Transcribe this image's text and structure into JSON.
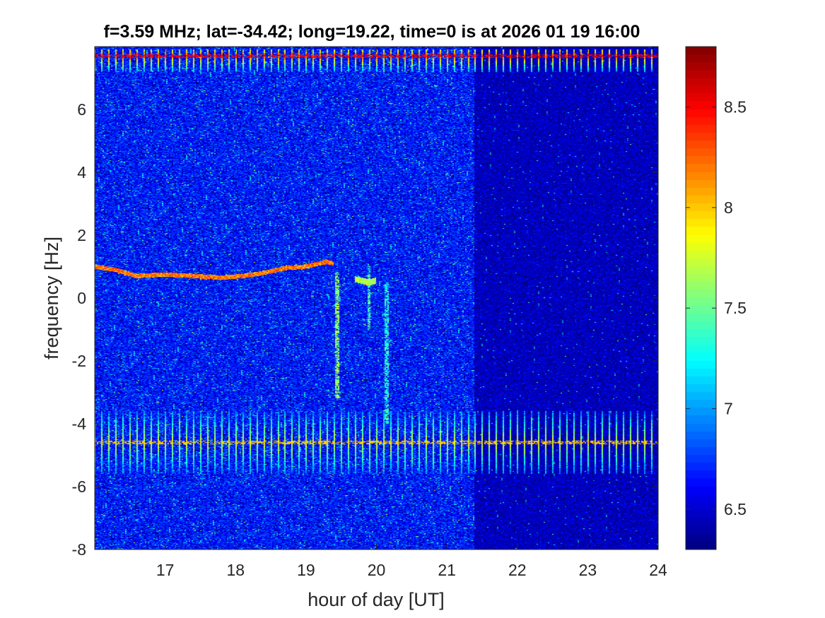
{
  "chart_data": {
    "type": "heatmap",
    "title": "f=3.59 MHz;  lat=-34.42; long=19.22, time=0 is at 2026 01 19 16:00",
    "xlabel": "hour of day [UT]",
    "ylabel": "frequency [Hz]",
    "xlim": [
      16,
      24
    ],
    "ylim": [
      -8,
      8
    ],
    "x_ticks": [
      17,
      18,
      19,
      20,
      21,
      22,
      23,
      24
    ],
    "x_tick_labels": [
      "17",
      "18",
      "19",
      "20",
      "21",
      "22",
      "23",
      "24"
    ],
    "y_ticks": [
      -8,
      -6,
      -4,
      -2,
      0,
      2,
      4,
      6
    ],
    "y_tick_labels": [
      "-8",
      "-6",
      "-4",
      "-2",
      "0",
      "2",
      "4",
      "6"
    ],
    "colorbar": {
      "colormap": "jet",
      "range": [
        6.3,
        8.8
      ],
      "ticks": [
        6.5,
        7,
        7.5,
        8,
        8.5
      ],
      "tick_labels": [
        "6.5",
        "7",
        "7.5",
        "8",
        "8.5"
      ]
    },
    "background_level": {
      "before_21.4h": 6.65,
      "after_21.4h": 6.45
    },
    "level_change_hour": 21.4,
    "features": {
      "doppler_trace": {
        "hours": [
          16.0,
          16.3,
          16.6,
          17.0,
          17.4,
          17.8,
          18.1,
          18.4,
          18.7,
          19.0,
          19.2,
          19.3,
          19.4
        ],
        "frequency_hz": [
          1.0,
          0.9,
          0.7,
          0.75,
          0.7,
          0.65,
          0.7,
          0.8,
          0.95,
          1.0,
          1.1,
          1.15,
          1.1
        ],
        "level": 8.2
      },
      "post_break_trace": {
        "hours": [
          19.7,
          19.8,
          19.9,
          20.0
        ],
        "frequency_hz": [
          0.6,
          0.55,
          0.5,
          0.55
        ],
        "level": 7.7
      },
      "vertical_streaks": [
        {
          "hour": 19.45,
          "from_hz": -3.2,
          "to_hz": 0.8,
          "level": 7.6
        },
        {
          "hour": 19.9,
          "from_hz": -1.0,
          "to_hz": 1.0,
          "level": 7.4
        },
        {
          "hour": 20.15,
          "from_hz": -4.0,
          "to_hz": 0.5,
          "level": 7.3
        }
      ],
      "periodic_interference_bands": [
        {
          "from_hz": -5.6,
          "to_hz": -3.6,
          "center_hz": -4.6,
          "level": 7.8
        },
        {
          "from_hz": 7.2,
          "to_hz": 7.9,
          "center_hz": 7.7,
          "level": 8.3
        }
      ]
    }
  }
}
